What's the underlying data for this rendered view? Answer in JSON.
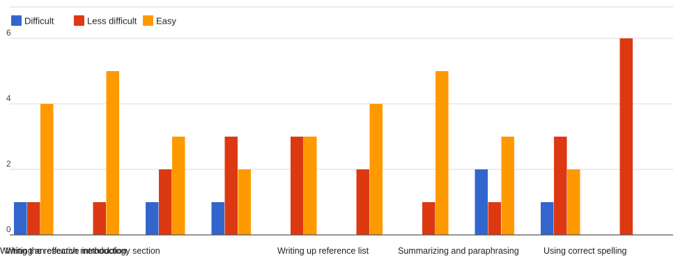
{
  "chart_data": {
    "type": "bar",
    "categories": [
      "Writing an effective introduction",
      "",
      "Writing the research methodology section",
      "",
      "Writing up reference list",
      "",
      "Summarizing and paraphrasing",
      "",
      "Using correct spelling",
      ""
    ],
    "series": [
      {
        "name": "Difficult",
        "color": "#3366cc",
        "values": [
          1,
          0,
          1,
          1,
          0,
          0,
          0,
          2,
          1,
          0
        ]
      },
      {
        "name": "Less difficult",
        "color": "#dc3912",
        "values": [
          1,
          1,
          2,
          3,
          3,
          2,
          1,
          1,
          3,
          6
        ]
      },
      {
        "name": "Easy",
        "color": "#ff9900",
        "values": [
          4,
          5,
          3,
          2,
          3,
          4,
          5,
          3,
          2,
          0
        ]
      }
    ],
    "yticks": [
      0,
      2,
      4,
      6
    ],
    "ylim": [
      0,
      6.6
    ],
    "grid": true,
    "legend_position": "top-left",
    "title": "",
    "xlabel": "",
    "ylabel": ""
  }
}
